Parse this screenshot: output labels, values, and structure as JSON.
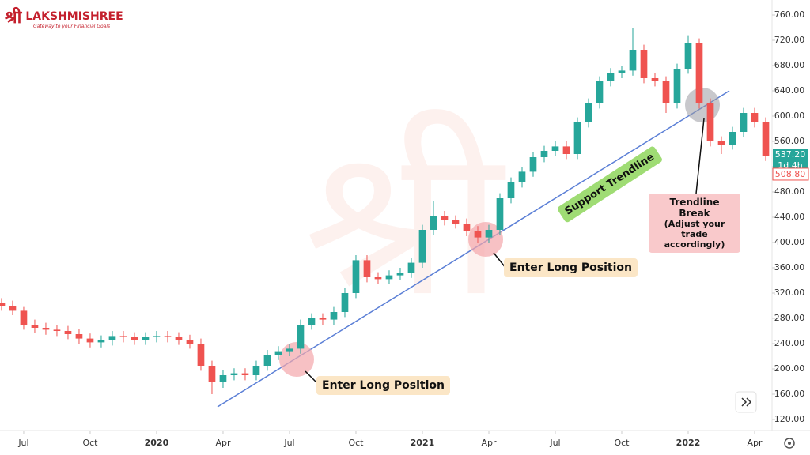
{
  "logo": {
    "symbol": "श्री",
    "name": "LAKSHMISHREE",
    "tagline": "Gateway to your Financial Goals"
  },
  "chart_data": {
    "type": "candlestick",
    "x": [
      5,
      5.5,
      6,
      6.5,
      7,
      7.5,
      8,
      8.5,
      9,
      9.5,
      10,
      10.5,
      11,
      11.5,
      12,
      12.5,
      13,
      13.5,
      14,
      14.5,
      15,
      15.5,
      16,
      16.5,
      17,
      17.5,
      18,
      18.5,
      19,
      19.5,
      20,
      20.5,
      21,
      21.5,
      22,
      22.5,
      23,
      23.5,
      24,
      24.5,
      25,
      25.5,
      26,
      26.5,
      27,
      27.5,
      28,
      28.5,
      29,
      29.5,
      30,
      30.5,
      31,
      31.5,
      32,
      32.5,
      33,
      33.5,
      34,
      34.5,
      35,
      35.5,
      36,
      36.5,
      37,
      37.5,
      38,
      38.5,
      39,
      39.5
    ],
    "open": [
      305,
      300,
      292,
      270,
      265,
      262,
      260,
      255,
      248,
      242,
      245,
      252,
      250,
      246,
      250,
      252,
      250,
      246,
      240,
      205,
      180,
      190,
      193,
      190,
      205,
      222,
      228,
      232,
      270,
      280,
      278,
      290,
      320,
      372,
      345,
      342,
      348,
      352,
      368,
      420,
      442,
      435,
      430,
      418,
      408,
      420,
      470,
      495,
      512,
      535,
      545,
      552,
      540,
      590,
      620,
      655,
      668,
      672,
      705,
      660,
      655,
      620,
      675,
      715,
      620,
      560,
      555,
      575,
      605,
      590
    ],
    "high": [
      312,
      308,
      298,
      278,
      273,
      270,
      268,
      263,
      256,
      253,
      260,
      260,
      258,
      258,
      260,
      260,
      258,
      254,
      248,
      213,
      198,
      201,
      201,
      213,
      230,
      236,
      240,
      278,
      288,
      288,
      298,
      328,
      380,
      380,
      353,
      356,
      360,
      376,
      428,
      465,
      450,
      443,
      438,
      426,
      428,
      478,
      503,
      520,
      543,
      553,
      560,
      560,
      598,
      628,
      663,
      676,
      680,
      740,
      713,
      668,
      663,
      683,
      728,
      723,
      628,
      568,
      583,
      613,
      613,
      598
    ],
    "low": [
      292,
      285,
      262,
      257,
      254,
      252,
      247,
      240,
      234,
      234,
      237,
      242,
      238,
      238,
      242,
      242,
      238,
      232,
      197,
      160,
      170,
      182,
      182,
      182,
      197,
      214,
      220,
      224,
      262,
      270,
      270,
      282,
      312,
      337,
      334,
      334,
      340,
      344,
      360,
      412,
      427,
      422,
      410,
      400,
      400,
      412,
      462,
      487,
      504,
      527,
      537,
      532,
      532,
      582,
      612,
      647,
      660,
      664,
      652,
      647,
      605,
      612,
      667,
      612,
      552,
      540,
      547,
      567,
      582,
      529
    ],
    "close": [
      300,
      292,
      270,
      265,
      262,
      260,
      255,
      248,
      242,
      245,
      252,
      250,
      246,
      250,
      252,
      250,
      246,
      240,
      205,
      180,
      190,
      193,
      190,
      205,
      222,
      228,
      232,
      270,
      280,
      278,
      290,
      320,
      372,
      345,
      342,
      348,
      352,
      368,
      420,
      442,
      435,
      430,
      418,
      408,
      420,
      470,
      495,
      512,
      535,
      545,
      552,
      540,
      590,
      620,
      655,
      668,
      672,
      705,
      660,
      655,
      620,
      675,
      715,
      620,
      560,
      555,
      575,
      605,
      590,
      537
    ],
    "up_color": "#26a69a",
    "down_color": "#ef5350",
    "xlim": [
      4.93,
      39.75
    ],
    "xticks": [
      {
        "value": 6,
        "label": "Jul"
      },
      {
        "value": 9,
        "label": "Oct"
      },
      {
        "value": 12,
        "label": "2020"
      },
      {
        "value": 15,
        "label": "Apr"
      },
      {
        "value": 18,
        "label": "Jul"
      },
      {
        "value": 21,
        "label": "Oct"
      },
      {
        "value": 24,
        "label": "2021"
      },
      {
        "value": 27,
        "label": "Apr"
      },
      {
        "value": 30,
        "label": "Jul"
      },
      {
        "value": 33,
        "label": "Oct"
      },
      {
        "value": 36,
        "label": "2022"
      },
      {
        "value": 39,
        "label": "Apr"
      }
    ],
    "ylim": [
      102.5,
      783.75
    ],
    "yticks": [
      {
        "value": 120,
        "label": "120.00"
      },
      {
        "value": 160,
        "label": "160.00"
      },
      {
        "value": 200,
        "label": "200.00"
      },
      {
        "value": 240,
        "label": "240.00"
      },
      {
        "value": 280,
        "label": "280.00"
      },
      {
        "value": 320,
        "label": "320.00"
      },
      {
        "value": 360,
        "label": "360.00"
      },
      {
        "value": 400,
        "label": "400.00"
      },
      {
        "value": 440,
        "label": "440.00"
      },
      {
        "value": 480,
        "label": "480.00"
      },
      {
        "value": 520,
        "label": "520.00"
      },
      {
        "value": 560,
        "label": "560.00"
      },
      {
        "value": 600,
        "label": "600.00"
      },
      {
        "value": 640,
        "label": "640.00"
      },
      {
        "value": 680,
        "label": "680.00"
      },
      {
        "value": 720,
        "label": "720.00"
      },
      {
        "value": 760,
        "label": "760.00"
      }
    ],
    "grid": false,
    "annotations": {
      "trendline": "Support Trendline",
      "entry_1": "Enter Long Position",
      "entry_2": "Enter Long Position",
      "break_title": "Trendline Break",
      "break_note": "(Adjust your trade accordingly)"
    },
    "price_tags": {
      "last": {
        "value": 537.2,
        "label": "537.20"
      },
      "countdown": "1d 4h",
      "other": {
        "value": 508.8,
        "label": "508.80"
      }
    }
  }
}
